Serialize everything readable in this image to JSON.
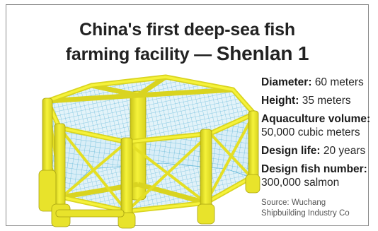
{
  "title": {
    "line1": "China's first deep-sea fish",
    "line2_prefix": "farming facility",
    "line2_dash": "—",
    "line2_name": "Shenlan 1"
  },
  "specs": [
    {
      "label": "Diameter:",
      "value": "60 meters"
    },
    {
      "label": "Height:",
      "value": "35 meters"
    },
    {
      "label": "Aquaculture volume:",
      "value": "50,000 cubic meters"
    },
    {
      "label": "Design life:",
      "value": "20 years"
    },
    {
      "label": "Design fish number:",
      "value": "300,000 salmon"
    }
  ],
  "source": {
    "line1": "Source: Wuchang",
    "line2": "Shipbuilding Industry Co"
  },
  "colors": {
    "frame_yellow": "#f2ee2a",
    "frame_shade": "#c9c417",
    "net_blue": "#5fb6d8",
    "net_light": "#cfe9f3"
  }
}
